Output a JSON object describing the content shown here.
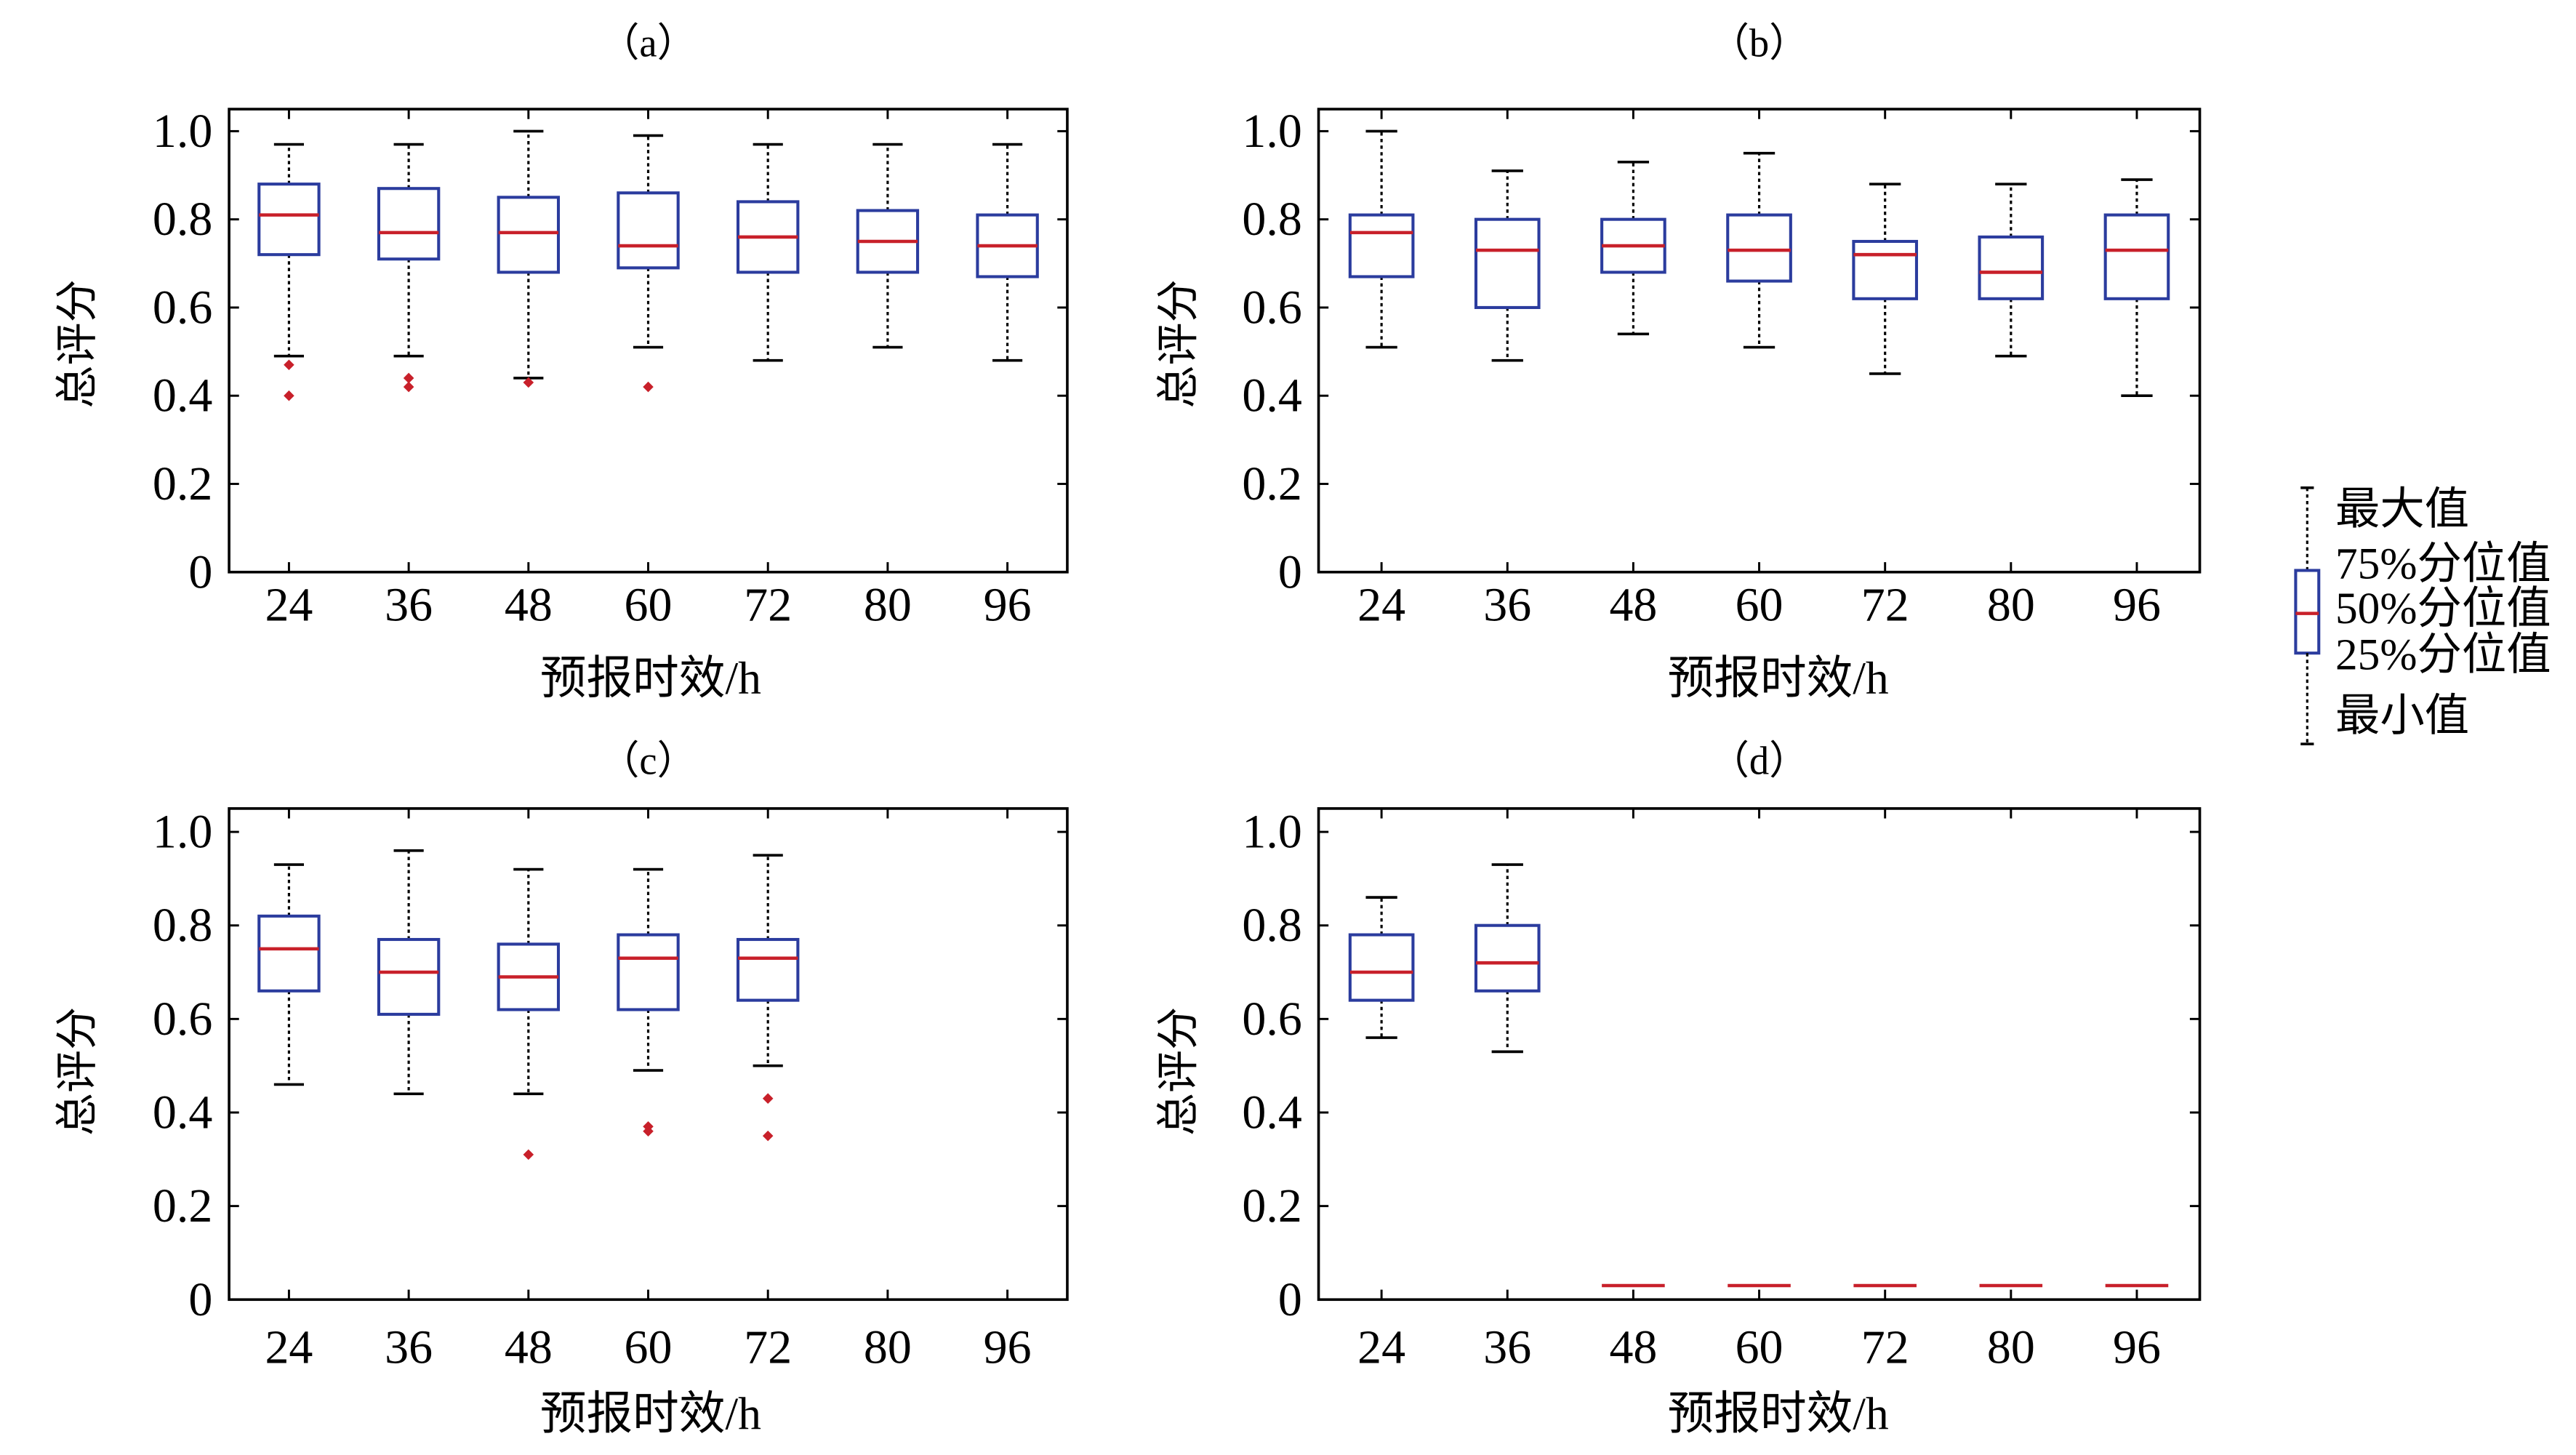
{
  "colors": {
    "box_edge": "#2b3c9e",
    "median": "#c8202a",
    "outlier": "#c8202a",
    "whisker": "#000000",
    "axis": "#000000"
  },
  "legend": {
    "placement": "right",
    "max_label": "最大值",
    "q3_label": "75%分位值",
    "median_label": "50%分位值",
    "q1_label": "25%分位值",
    "min_label": "最小值"
  },
  "chart_data": [
    {
      "type": "box",
      "title": "（a）",
      "xlabel": "预报时效/h",
      "ylabel": "总评分",
      "categories": [
        "24",
        "36",
        "48",
        "60",
        "72",
        "80",
        "96"
      ],
      "yticks": [
        0,
        0.2,
        0.4,
        0.6,
        0.8,
        1.0
      ],
      "ytick_labels": [
        "0",
        "0.2",
        "0.4",
        "0.6",
        "0.8",
        "1.0"
      ],
      "ylim": [
        0,
        1.05
      ],
      "grid": false,
      "boxes": [
        {
          "min": 0.49,
          "q1": 0.72,
          "median": 0.81,
          "q3": 0.88,
          "max": 0.97,
          "outliers": [
            0.47,
            0.4
          ]
        },
        {
          "min": 0.49,
          "q1": 0.71,
          "median": 0.77,
          "q3": 0.87,
          "max": 0.97,
          "outliers": [
            0.44,
            0.42
          ]
        },
        {
          "min": 0.44,
          "q1": 0.68,
          "median": 0.77,
          "q3": 0.85,
          "max": 1.0,
          "outliers": [
            0.43
          ]
        },
        {
          "min": 0.51,
          "q1": 0.69,
          "median": 0.74,
          "q3": 0.86,
          "max": 0.99,
          "outliers": [
            0.42
          ]
        },
        {
          "min": 0.48,
          "q1": 0.68,
          "median": 0.76,
          "q3": 0.84,
          "max": 0.97,
          "outliers": []
        },
        {
          "min": 0.51,
          "q1": 0.68,
          "median": 0.75,
          "q3": 0.82,
          "max": 0.97,
          "outliers": []
        },
        {
          "min": 0.48,
          "q1": 0.67,
          "median": 0.74,
          "q3": 0.81,
          "max": 0.97,
          "outliers": []
        }
      ]
    },
    {
      "type": "box",
      "title": "（b）",
      "xlabel": "预报时效/h",
      "ylabel": "总评分",
      "categories": [
        "24",
        "36",
        "48",
        "60",
        "72",
        "80",
        "96"
      ],
      "yticks": [
        0,
        0.2,
        0.4,
        0.6,
        0.8,
        1.0
      ],
      "ytick_labels": [
        "0",
        "0.2",
        "0.4",
        "0.6",
        "0.8",
        "1.0"
      ],
      "ylim": [
        0,
        1.05
      ],
      "grid": false,
      "boxes": [
        {
          "min": 0.51,
          "q1": 0.67,
          "median": 0.77,
          "q3": 0.81,
          "max": 1.0,
          "outliers": []
        },
        {
          "min": 0.48,
          "q1": 0.6,
          "median": 0.73,
          "q3": 0.8,
          "max": 0.91,
          "outliers": []
        },
        {
          "min": 0.54,
          "q1": 0.68,
          "median": 0.74,
          "q3": 0.8,
          "max": 0.93,
          "outliers": []
        },
        {
          "min": 0.51,
          "q1": 0.66,
          "median": 0.73,
          "q3": 0.81,
          "max": 0.95,
          "outliers": []
        },
        {
          "min": 0.45,
          "q1": 0.62,
          "median": 0.72,
          "q3": 0.75,
          "max": 0.88,
          "outliers": []
        },
        {
          "min": 0.49,
          "q1": 0.62,
          "median": 0.68,
          "q3": 0.76,
          "max": 0.88,
          "outliers": []
        },
        {
          "min": 0.4,
          "q1": 0.62,
          "median": 0.73,
          "q3": 0.81,
          "max": 0.89,
          "outliers": []
        }
      ]
    },
    {
      "type": "box",
      "title": "（c）",
      "xlabel": "预报时效/h",
      "ylabel": "总评分",
      "categories": [
        "24",
        "36",
        "48",
        "60",
        "72",
        "80",
        "96"
      ],
      "yticks": [
        0,
        0.2,
        0.4,
        0.6,
        0.8,
        1.0
      ],
      "ytick_labels": [
        "0",
        "0.2",
        "0.4",
        "0.6",
        "0.8",
        "1.0"
      ],
      "ylim": [
        0,
        1.05
      ],
      "grid": false,
      "boxes": [
        {
          "min": 0.46,
          "q1": 0.66,
          "median": 0.75,
          "q3": 0.82,
          "max": 0.93,
          "outliers": []
        },
        {
          "min": 0.44,
          "q1": 0.61,
          "median": 0.7,
          "q3": 0.77,
          "max": 0.96,
          "outliers": []
        },
        {
          "min": 0.44,
          "q1": 0.62,
          "median": 0.69,
          "q3": 0.76,
          "max": 0.92,
          "outliers": [
            0.31
          ]
        },
        {
          "min": 0.49,
          "q1": 0.62,
          "median": 0.73,
          "q3": 0.78,
          "max": 0.92,
          "outliers": [
            0.37,
            0.36
          ]
        },
        {
          "min": 0.5,
          "q1": 0.64,
          "median": 0.73,
          "q3": 0.77,
          "max": 0.95,
          "outliers": [
            0.43,
            0.35
          ]
        },
        null,
        null
      ]
    },
    {
      "type": "box",
      "title": "（d）",
      "xlabel": "预报时效/h",
      "ylabel": "总评分",
      "categories": [
        "24",
        "36",
        "48",
        "60",
        "72",
        "80",
        "96"
      ],
      "yticks": [
        0,
        0.2,
        0.4,
        0.6,
        0.8,
        1.0
      ],
      "ytick_labels": [
        "0",
        "0.2",
        "0.4",
        "0.6",
        "0.8",
        "1.0"
      ],
      "ylim": [
        0,
        1.05
      ],
      "grid": false,
      "boxes": [
        {
          "min": 0.56,
          "q1": 0.64,
          "median": 0.7,
          "q3": 0.78,
          "max": 0.86,
          "outliers": []
        },
        {
          "min": 0.53,
          "q1": 0.66,
          "median": 0.72,
          "q3": 0.8,
          "max": 0.93,
          "outliers": []
        },
        {
          "median": 0.03
        },
        {
          "median": 0.03
        },
        {
          "median": 0.03
        },
        {
          "median": 0.03
        },
        {
          "median": 0.03
        }
      ]
    }
  ]
}
